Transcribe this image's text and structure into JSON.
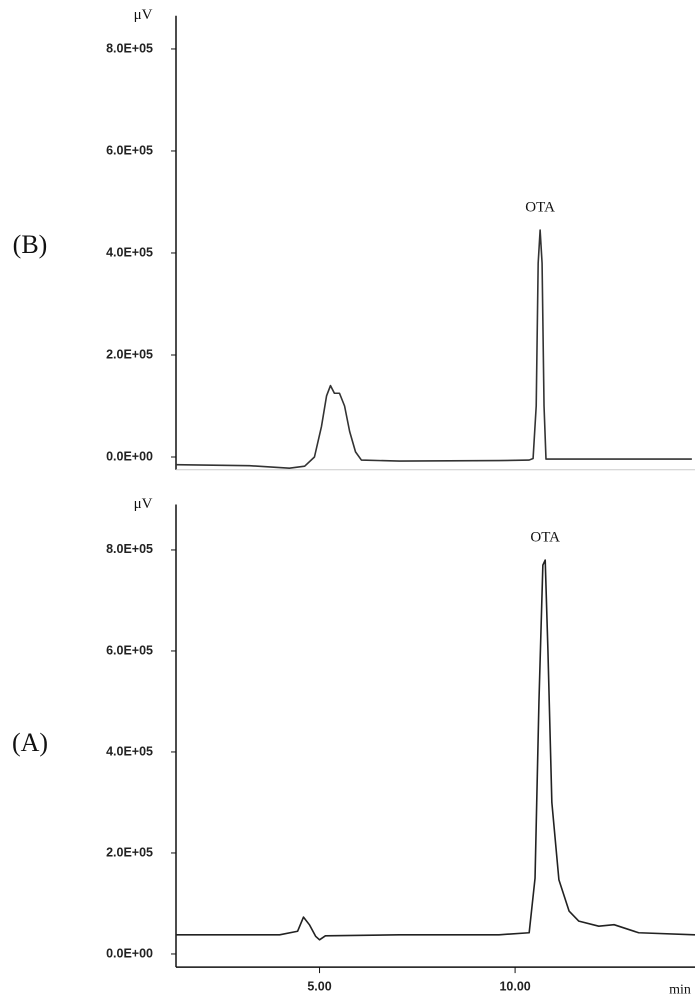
{
  "chart_data": [
    {
      "type": "line",
      "label": "(B)",
      "y_label": "μV",
      "annotation": "OTA",
      "color": "#333333",
      "xlim": [
        1.33,
        14.6
      ],
      "ylim": [
        -25000,
        865000
      ],
      "yticks": [
        {
          "value": 0,
          "label": "0.0E+00"
        },
        {
          "value": 200000,
          "label": "2.0E+05"
        },
        {
          "value": 400000,
          "label": "4.0E+05"
        },
        {
          "value": 600000,
          "label": "6.0E+05"
        },
        {
          "value": 800000,
          "label": "8.0E+05"
        }
      ],
      "x": [
        1.33,
        3.21,
        4.23,
        4.62,
        4.87,
        5.05,
        5.18,
        5.28,
        5.38,
        5.51,
        5.64,
        5.77,
        5.92,
        6.07,
        7.04,
        9.59,
        10.36,
        10.46,
        10.54,
        10.59,
        10.64,
        10.69,
        10.74,
        10.79,
        12.14,
        14.52
      ],
      "values": [
        -15000,
        -17000,
        -22000,
        -18000,
        0,
        60000,
        120000,
        140000,
        125000,
        125000,
        100000,
        50000,
        10000,
        -6000,
        -8000,
        -7000,
        -6000,
        -3000,
        100000,
        380000,
        445000,
        380000,
        100000,
        -4000,
        -4000,
        -4000
      ]
    },
    {
      "type": "line",
      "label": "(A)",
      "y_label": "μV",
      "annotation": "OTA",
      "x_label": "min",
      "color": "#222222",
      "xlim": [
        1.33,
        14.6
      ],
      "ylim": [
        -26000,
        890000
      ],
      "xticks": [
        {
          "value": 5,
          "label": "5.00"
        },
        {
          "value": 10,
          "label": "10.00"
        }
      ],
      "yticks": [
        {
          "value": 0,
          "label": "0.0E+00"
        },
        {
          "value": 200000,
          "label": "2.0E+05"
        },
        {
          "value": 400000,
          "label": "4.0E+05"
        },
        {
          "value": 600000,
          "label": "6.0E+05"
        },
        {
          "value": 800000,
          "label": "8.0E+05"
        }
      ],
      "x": [
        1.33,
        3.98,
        4.44,
        4.59,
        4.74,
        4.9,
        5.0,
        5.15,
        7.04,
        9.59,
        10.36,
        10.51,
        10.61,
        10.71,
        10.77,
        10.84,
        10.94,
        11.12,
        11.38,
        11.63,
        12.14,
        12.53,
        13.16,
        14.6
      ],
      "values": [
        38000,
        38000,
        45000,
        73000,
        58000,
        35000,
        28000,
        36000,
        38000,
        38000,
        42000,
        150000,
        500000,
        770000,
        780000,
        600000,
        300000,
        147000,
        85000,
        65000,
        55000,
        58000,
        42000,
        38000
      ]
    }
  ]
}
